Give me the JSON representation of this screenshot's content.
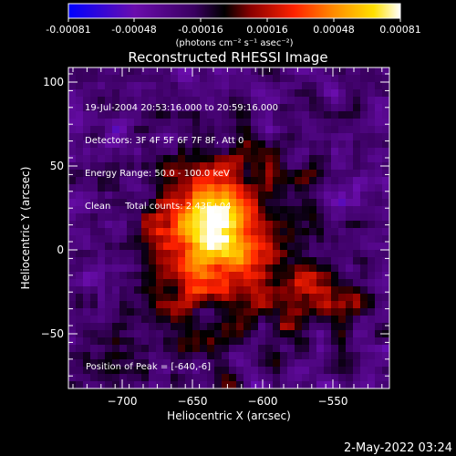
{
  "colorbar": {
    "ticks": [
      "-0.00081",
      "-0.00048",
      "-0.00016",
      "0.00016",
      "0.00048",
      "0.00081"
    ],
    "units": "(photons cm⁻² s⁻¹ asec⁻²)",
    "colors": [
      "#0000ff",
      "#6a0dad",
      "#3a0060",
      "#000000",
      "#8b0000",
      "#ff2200",
      "#ff8c00",
      "#ffe000",
      "#ffffff"
    ]
  },
  "title": "Reconstructed RHESSI Image",
  "info": {
    "line1": "19-Jul-2004 20:53:16.000 to 20:59:16.000",
    "line2": "Detectors: 3F 4F 5F 6F 7F 8F, Att 0",
    "line3": "Energy Range: 50.0 - 100.0 keV",
    "line4": "Clean     Total counts: 2.43E+04"
  },
  "peak_label": "Position of Peak = [-640,-6]",
  "x_axis": {
    "label": "Heliocentric X (arcsec)",
    "ticks": [
      "−700",
      "−650",
      "−600",
      "−550"
    ]
  },
  "y_axis": {
    "label": "Heliocentric Y (arcsec)",
    "ticks": [
      "100",
      "50",
      "0",
      "−50"
    ]
  },
  "timestamp": "2-May-2022 03:24"
}
